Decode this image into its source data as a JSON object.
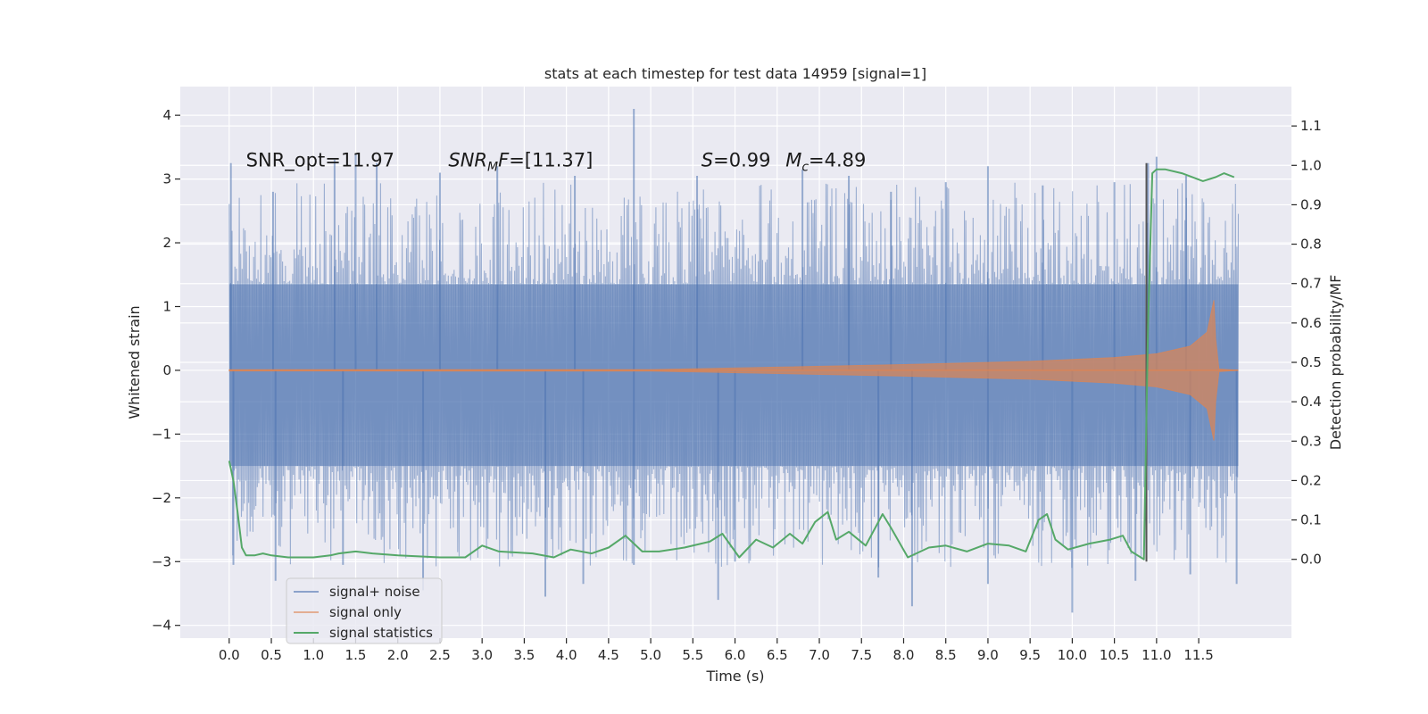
{
  "chart_data": {
    "type": "line",
    "title": "stats at each timestep for test data 14959 [signal=1]",
    "xlabel": "Time (s)",
    "ylabel": "Whitened strain",
    "y2label": "Detection probability/MF",
    "xlim": [
      -0.58,
      12.6
    ],
    "ylim": [
      -4.2,
      4.45
    ],
    "y2lim": [
      -0.2,
      1.2
    ],
    "x_ticks": [
      0.0,
      0.5,
      1.0,
      1.5,
      2.0,
      2.5,
      3.0,
      3.5,
      4.0,
      4.5,
      5.0,
      5.5,
      6.0,
      6.5,
      7.0,
      7.5,
      8.0,
      8.5,
      9.0,
      9.5,
      10.0,
      10.5,
      11.0,
      11.5
    ],
    "x_tick_labels": [
      "0.0",
      "0.5",
      "1.0",
      "1.5",
      "2.0",
      "2.5",
      "3.0",
      "3.5",
      "4.0",
      "4.5",
      "5.0",
      "5.5",
      "6.0",
      "6.5",
      "7.0",
      "7.5",
      "8.0",
      "8.5",
      "9.0",
      "9.5",
      "10.0",
      "10.5",
      "11.0",
      "11.5"
    ],
    "y_ticks": [
      -4,
      -3,
      -2,
      -1,
      0,
      1,
      2,
      3,
      4
    ],
    "y_tick_labels": [
      "−4",
      "−3",
      "−2",
      "−1",
      "0",
      "1",
      "2",
      "3",
      "4"
    ],
    "y2_ticks": [
      0.0,
      0.1,
      0.2,
      0.3,
      0.4,
      0.5,
      0.6,
      0.7,
      0.8,
      0.9,
      1.0,
      1.1
    ],
    "y2_tick_labels": [
      "0.0",
      "0.1",
      "0.2",
      "0.3",
      "0.4",
      "0.5",
      "0.6",
      "0.7",
      "0.8",
      "0.9",
      "1.0",
      "1.1"
    ],
    "grid": true,
    "legend_position": "lower-left",
    "colors": {
      "background": "#eaeaf2",
      "grid": "#ffffff",
      "noise": "#4c72b0",
      "signal": "#dd8452",
      "stats": "#55a868",
      "marker": "#555555"
    },
    "series": [
      {
        "name": "signal+ noise",
        "t_range": [
          0.0,
          11.97
        ],
        "band_envelope": {
          "t": [
            0.0,
            11.97
          ],
          "lower": [
            -1.5,
            -1.5
          ],
          "upper": [
            1.35,
            1.35
          ]
        },
        "peaks_up": [
          [
            0.02,
            3.25
          ],
          [
            0.52,
            2.8
          ],
          [
            1.25,
            3.3
          ],
          [
            1.5,
            3.4
          ],
          [
            1.75,
            3.25
          ],
          [
            2.5,
            3.1
          ],
          [
            3.18,
            3.2
          ],
          [
            4.1,
            3.05
          ],
          [
            4.8,
            4.1
          ],
          [
            5.55,
            3.05
          ],
          [
            6.8,
            3.15
          ],
          [
            7.35,
            3.05
          ],
          [
            7.85,
            2.8
          ],
          [
            8.5,
            2.95
          ],
          [
            9.0,
            3.2
          ],
          [
            9.65,
            2.9
          ],
          [
            10.5,
            2.95
          ],
          [
            10.9,
            3.25
          ],
          [
            11.0,
            3.35
          ],
          [
            11.35,
            3.05
          ]
        ],
        "peaks_down": [
          [
            0.05,
            -3.05
          ],
          [
            0.55,
            -3.3
          ],
          [
            1.35,
            -3.05
          ],
          [
            2.3,
            -3.45
          ],
          [
            3.75,
            -3.55
          ],
          [
            4.2,
            -3.35
          ],
          [
            4.8,
            -3.05
          ],
          [
            5.8,
            -3.6
          ],
          [
            6.0,
            -3.0
          ],
          [
            7.7,
            -3.25
          ],
          [
            8.1,
            -3.7
          ],
          [
            9.0,
            -3.35
          ],
          [
            10.0,
            -3.8
          ],
          [
            10.75,
            -3.3
          ],
          [
            11.4,
            -3.2
          ],
          [
            11.95,
            -3.35
          ]
        ]
      },
      {
        "name": "signal only",
        "t": [
          0.0,
          5.0,
          6.5,
          8.0,
          9.5,
          10.5,
          11.0,
          11.4,
          11.6,
          11.68,
          11.7,
          11.74,
          11.97
        ],
        "amplitude": [
          0.01,
          0.012,
          0.05,
          0.09,
          0.14,
          0.2,
          0.26,
          0.38,
          0.6,
          1.1,
          0.5,
          0.02,
          0.0
        ]
      },
      {
        "name": "signal statistics",
        "axis": "right",
        "t": [
          0.0,
          0.05,
          0.1,
          0.15,
          0.2,
          0.3,
          0.4,
          0.5,
          0.7,
          1.0,
          1.2,
          1.3,
          1.5,
          1.7,
          2.0,
          2.5,
          2.8,
          3.0,
          3.2,
          3.6,
          3.85,
          4.05,
          4.3,
          4.5,
          4.7,
          4.9,
          5.1,
          5.4,
          5.7,
          5.85,
          6.05,
          6.25,
          6.45,
          6.65,
          6.8,
          6.95,
          7.1,
          7.2,
          7.35,
          7.55,
          7.75,
          7.85,
          8.05,
          8.3,
          8.5,
          8.75,
          9.0,
          9.25,
          9.45,
          9.6,
          9.7,
          9.8,
          9.95,
          10.2,
          10.45,
          10.6,
          10.7,
          10.85,
          10.9,
          10.95,
          11.0,
          11.1,
          11.3,
          11.55,
          11.7,
          11.8,
          11.92
        ],
        "values": [
          0.25,
          0.2,
          0.12,
          0.03,
          0.01,
          0.01,
          0.015,
          0.01,
          0.005,
          0.005,
          0.01,
          0.015,
          0.02,
          0.015,
          0.01,
          0.005,
          0.005,
          0.035,
          0.02,
          0.015,
          0.005,
          0.025,
          0.015,
          0.03,
          0.06,
          0.02,
          0.02,
          0.03,
          0.045,
          0.065,
          0.005,
          0.05,
          0.03,
          0.065,
          0.04,
          0.095,
          0.12,
          0.05,
          0.07,
          0.035,
          0.115,
          0.08,
          0.005,
          0.03,
          0.035,
          0.02,
          0.04,
          0.035,
          0.02,
          0.1,
          0.115,
          0.05,
          0.025,
          0.04,
          0.05,
          0.06,
          0.02,
          0.0,
          0.6,
          0.98,
          0.99,
          0.99,
          0.98,
          0.96,
          0.97,
          0.98,
          0.97
        ]
      }
    ],
    "marker_line": {
      "t": 10.88,
      "y_top": 3.25,
      "y_bottom": -3.0
    },
    "annotations": [
      {
        "id": "snr-opt",
        "label": "SNR_opt",
        "value": "=11.97",
        "t": 0.2,
        "y": 3.2
      },
      {
        "id": "snr-mf",
        "label": "SNR",
        "subscript": "M",
        "label_tail": "F",
        "value": "=[11.37]",
        "t": 2.6,
        "y": 3.2
      },
      {
        "id": "s-val",
        "label": "S",
        "value": "=0.99",
        "t": 5.6,
        "y": 3.2
      },
      {
        "id": "mc-val",
        "label": "M",
        "subscript": "c",
        "value": "=4.89",
        "t": 6.6,
        "y": 3.2
      }
    ],
    "legend": [
      "signal+ noise",
      "signal only",
      "signal statistics"
    ]
  }
}
